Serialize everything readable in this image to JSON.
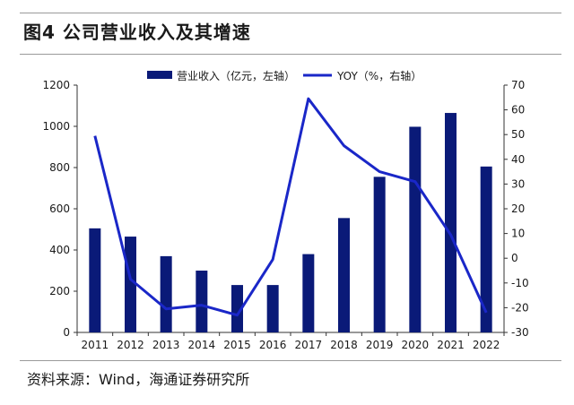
{
  "figure": {
    "title": "图4  公司营业收入及其增速",
    "source": "资料来源：Wind，海通证券研究所"
  },
  "colors": {
    "bar": "#0a1a78",
    "line": "#1a27c8",
    "text": "#1a1a1a"
  },
  "chart_data": {
    "type": "bar",
    "categories": [
      "2011",
      "2012",
      "2013",
      "2014",
      "2015",
      "2016",
      "2017",
      "2018",
      "2019",
      "2020",
      "2021",
      "2022"
    ],
    "series": [
      {
        "name": "营业收入（亿元，左轴）",
        "type": "bar",
        "axis": "left",
        "values": [
          505,
          465,
          370,
          300,
          230,
          230,
          380,
          555,
          755,
          998,
          1065,
          805
        ]
      },
      {
        "name": "YOY（%，右轴）",
        "type": "line",
        "axis": "right",
        "values": [
          49.5,
          -8.5,
          -20.5,
          -19,
          -23,
          -0.5,
          64.5,
          45.5,
          35,
          31,
          9.5,
          -22
        ]
      }
    ],
    "y_left": {
      "min": 0,
      "max": 1200,
      "ticks": [
        0,
        200,
        400,
        600,
        800,
        1000,
        1200
      ]
    },
    "y_right": {
      "min": -30,
      "max": 70,
      "ticks": [
        -30,
        -20,
        -10,
        0,
        10,
        20,
        30,
        40,
        50,
        60,
        70
      ]
    },
    "legend": "top-center",
    "grid": false
  }
}
